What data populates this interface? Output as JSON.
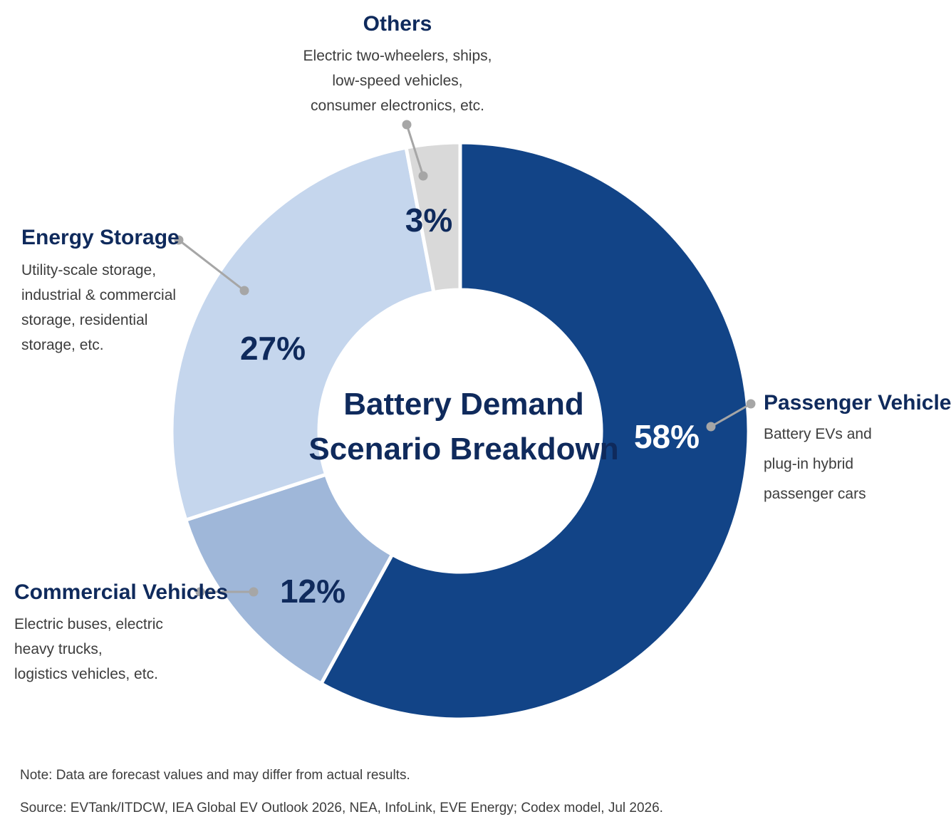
{
  "chart_data": {
    "type": "pie",
    "title": "Battery Demand Scenario Breakdown",
    "title_lines": [
      "Battery Demand",
      "Scenario Breakdown"
    ],
    "slices": [
      {
        "key": "passenger",
        "label": "Passenger Vehicles (EV)",
        "value": 58,
        "value_label": "58%",
        "description": [
          "Battery EVs and",
          "plug-in hybrid",
          "passenger cars"
        ],
        "color": "#124487",
        "label_color": "#ffffff"
      },
      {
        "key": "commercial",
        "label": "Commercial Vehicles",
        "value": 12,
        "value_label": "12%",
        "description": [
          "Electric buses, electric",
          "heavy trucks,",
          "logistics vehicles, etc."
        ],
        "color": "#9fb7d9",
        "label_color": "#0f2a5c"
      },
      {
        "key": "storage",
        "label": "Energy Storage",
        "value": 27,
        "value_label": "27%",
        "description": [
          "Utility-scale storage,",
          "industrial & commercial",
          "storage, residential",
          "storage, etc."
        ],
        "color": "#c5d6ed",
        "label_color": "#0f2a5c"
      },
      {
        "key": "others",
        "label": "Others",
        "value": 3,
        "value_label": "3%",
        "description": [
          "Electric two-wheelers, ships,",
          "low-speed vehicles,",
          "consumer electronics, etc."
        ],
        "color": "#d9d9d9",
        "label_color": "#0f2a5c"
      }
    ],
    "legend": "callouts"
  },
  "footer": {
    "note": "Note: Data are forecast values and may differ from actual results.",
    "source": "Source: EVTank/ITDCW, IEA Global EV Outlook 2026, NEA, InfoLink, EVE Energy; Codex model, Jul 2026."
  },
  "colors": {
    "title": "#0f2a5c",
    "leader_line": "#a6a6a6",
    "text": "#3d3d3d"
  }
}
